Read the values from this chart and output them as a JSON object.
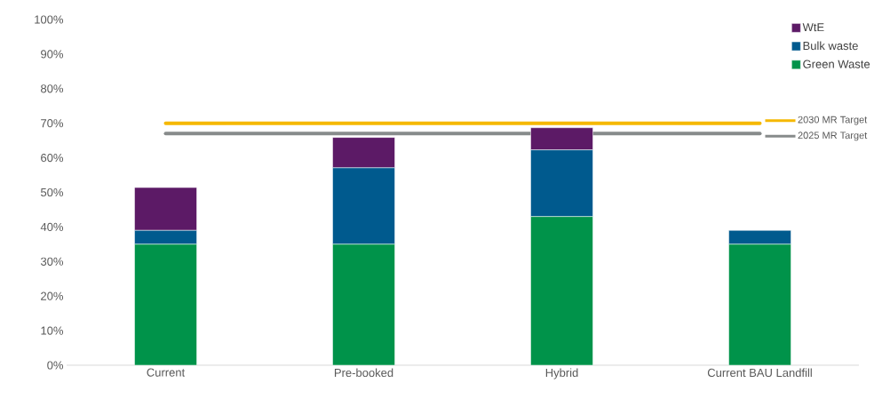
{
  "chart_data": {
    "type": "bar",
    "stacked": true,
    "categories": [
      "Current",
      "Pre-booked",
      "Hybrid",
      "Current BAU Landfill"
    ],
    "series": [
      {
        "name": "Green Waste",
        "color": "#00934a",
        "values": [
          35,
          35,
          43,
          35
        ]
      },
      {
        "name": "Bulk waste",
        "color": "#005a8e",
        "values": [
          4,
          22.1,
          19.3,
          4
        ]
      },
      {
        "name": "WtE",
        "color": "#5c1a66",
        "values": [
          12.4,
          8.8,
          6.4,
          null
        ]
      }
    ],
    "ylim": [
      0,
      100
    ],
    "yticks": [
      {
        "value": 0,
        "label": "0%"
      },
      {
        "value": 10,
        "label": "10%"
      },
      {
        "value": 20,
        "label": "20%"
      },
      {
        "value": 30,
        "label": "30%"
      },
      {
        "value": 40,
        "label": "40%"
      },
      {
        "value": 50,
        "label": "50%"
      },
      {
        "value": 60,
        "label": "60%"
      },
      {
        "value": 70,
        "label": "70%"
      },
      {
        "value": 80,
        "label": "80%"
      },
      {
        "value": 90,
        "label": "90%"
      },
      {
        "value": 100,
        "label": "100%"
      }
    ],
    "ref_lines": [
      {
        "axis": "y",
        "value": 70,
        "label": "2030 MR Target",
        "color": "#f5b800"
      },
      {
        "axis": "y",
        "value": 67,
        "label": "2025 MR Target",
        "color": "#878b8b"
      }
    ],
    "legend": "top right",
    "grid": false
  }
}
